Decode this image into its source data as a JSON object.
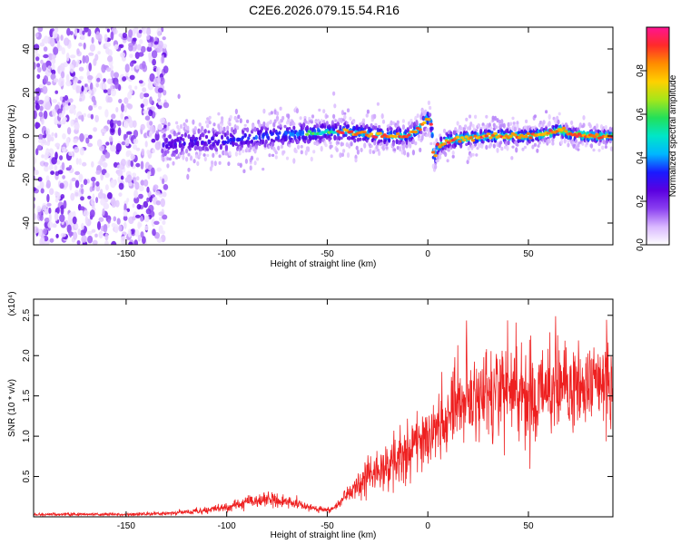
{
  "figure": {
    "title": "C2E6.2026.079.15.54.R16"
  },
  "chart_data": [
    {
      "type": "heatmap",
      "xlabel": "Height of straight line (km)",
      "ylabel": "Frequency (Hz)",
      "xlim": [
        -196,
        92
      ],
      "ylim": [
        -50,
        50
      ],
      "xticks": [
        -150,
        -100,
        -50,
        0,
        50
      ],
      "yticks": [
        -40,
        -20,
        0,
        20,
        40
      ],
      "colorbar": {
        "label": "Normalized spectral amplitude",
        "range": [
          0,
          1
        ],
        "ticks": [
          0.0,
          0.2,
          0.4,
          0.6,
          0.8
        ],
        "colors": [
          "#ffffff",
          "#d9b8ff",
          "#8a3ff0",
          "#5a00e0",
          "#1a1aff",
          "#00b7ff",
          "#00e6c8",
          "#22e05a",
          "#a5e61a",
          "#ffd000",
          "#ff8c00",
          "#ff2a2a",
          "#ff1493"
        ]
      },
      "ridge": {
        "x": [
          -130,
          -120,
          -110,
          -100,
          -90,
          -80,
          -70,
          -60,
          -50,
          -40,
          -30,
          -20,
          -10,
          -5,
          0,
          2,
          3,
          5,
          10,
          20,
          30,
          40,
          50,
          60,
          65,
          70,
          80,
          90
        ],
        "y": [
          -4,
          -3,
          -2,
          -2,
          -1,
          0,
          1,
          1,
          2,
          2,
          1,
          0,
          0,
          3,
          8,
          5,
          -12,
          -5,
          -2,
          -1,
          0,
          0,
          0,
          1,
          3,
          1,
          0,
          0
        ]
      },
      "grid": false
    },
    {
      "type": "line",
      "xlabel": "Height of straight line (km)",
      "ylabel": "SNR (10 * v/v)",
      "scale_label": "(x10⁴)",
      "xlim": [
        -196,
        92
      ],
      "ylim": [
        0,
        2.7
      ],
      "xticks": [
        -150,
        -100,
        -50,
        0,
        50
      ],
      "yticks": [
        0.5,
        1.0,
        1.5,
        2.0,
        2.5
      ],
      "series": [
        {
          "color": "#ee2020",
          "x": [
            -196,
            -150,
            -130,
            -120,
            -110,
            -100,
            -90,
            -80,
            -70,
            -60,
            -50,
            -45,
            -40,
            -35,
            -30,
            -20,
            -10,
            0,
            10,
            15,
            20,
            30,
            40,
            50,
            60,
            70,
            80,
            92
          ],
          "y": [
            0.03,
            0.03,
            0.04,
            0.06,
            0.08,
            0.12,
            0.18,
            0.22,
            0.18,
            0.12,
            0.08,
            0.14,
            0.28,
            0.4,
            0.5,
            0.65,
            0.8,
            1.0,
            1.3,
            1.5,
            1.45,
            1.55,
            1.6,
            1.55,
            1.6,
            1.65,
            1.6,
            1.65
          ]
        }
      ],
      "grid": false
    }
  ]
}
